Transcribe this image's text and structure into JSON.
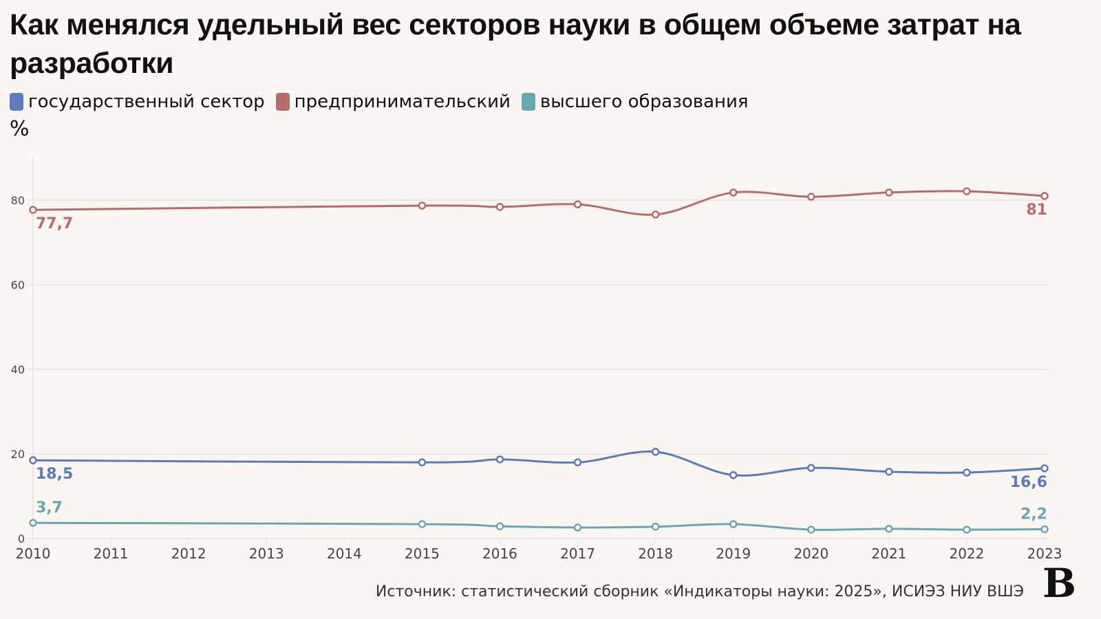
{
  "title": "Как менялся удельный вес секторов науки в общем объеме затрат на разработки",
  "unit": "%",
  "source": "Источник: статистический сборник «Индикаторы науки: 2025», ИСИЭЗ НИУ ВШЭ",
  "logo": "В",
  "chart_data": {
    "type": "line",
    "title": "Как менялся удельный вес секторов науки в общем объеме затрат на разработки",
    "ylabel": "%",
    "ylim": [
      0,
      90
    ],
    "yticks": [
      0,
      20,
      40,
      60,
      80
    ],
    "xticks": [
      2010,
      2011,
      2012,
      2013,
      2014,
      2015,
      2016,
      2017,
      2018,
      2019,
      2020,
      2021,
      2022,
      2023
    ],
    "grid": true,
    "legend": "top-left",
    "x": [
      2010,
      2015,
      2016,
      2017,
      2018,
      2019,
      2020,
      2021,
      2022,
      2023
    ],
    "series": [
      {
        "name": "государственный сектор",
        "color": "#5b7bbd",
        "values": [
          18.5,
          18.0,
          18.7,
          18.0,
          20.5,
          15.0,
          16.7,
          15.8,
          15.6,
          16.6
        ],
        "labels": {
          "first": "18,5",
          "last": "16,6"
        }
      },
      {
        "name": "предпринимательский",
        "color": "#b96a6a",
        "values": [
          77.7,
          78.7,
          78.4,
          79.0,
          76.6,
          81.8,
          80.8,
          81.8,
          82.1,
          81.0
        ],
        "labels": {
          "first": "77,7",
          "last": "81"
        }
      },
      {
        "name": "высшего образования",
        "color": "#67a6b5",
        "values": [
          3.7,
          3.4,
          2.9,
          2.6,
          2.8,
          3.4,
          2.1,
          2.3,
          2.1,
          2.2
        ],
        "labels": {
          "first": "3,7",
          "last": "2,2"
        }
      }
    ]
  }
}
